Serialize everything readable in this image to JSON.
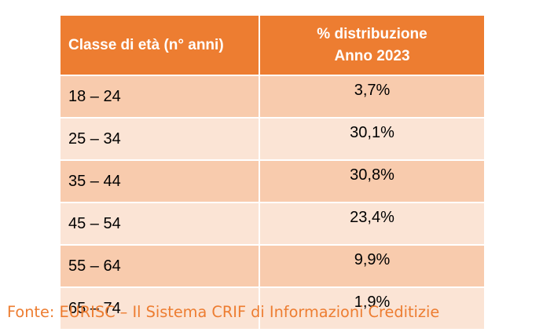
{
  "table": {
    "header_age": "Classe di età (n° anni)",
    "header_pct_line1": "% distribuzione",
    "header_pct_line2": "Anno 2023",
    "rows": [
      {
        "age": "18 – 24",
        "pct": "3,7%"
      },
      {
        "age": "25 – 34",
        "pct": "30,1%"
      },
      {
        "age": "35 – 44",
        "pct": "30,8%"
      },
      {
        "age": "45 – 54",
        "pct": "23,4%"
      },
      {
        "age": "55 – 64",
        "pct": "9,9%"
      },
      {
        "age": "65 – 74",
        "pct": "1,9%"
      }
    ]
  },
  "source": "Fonte: EURISC – Il Sistema CRIF di Informazioni Creditizie",
  "colors": {
    "header_bg": "#ed7d31",
    "row_dark": "#f8cbad",
    "row_light": "#fbe4d5",
    "source_text": "#ed7d31"
  }
}
